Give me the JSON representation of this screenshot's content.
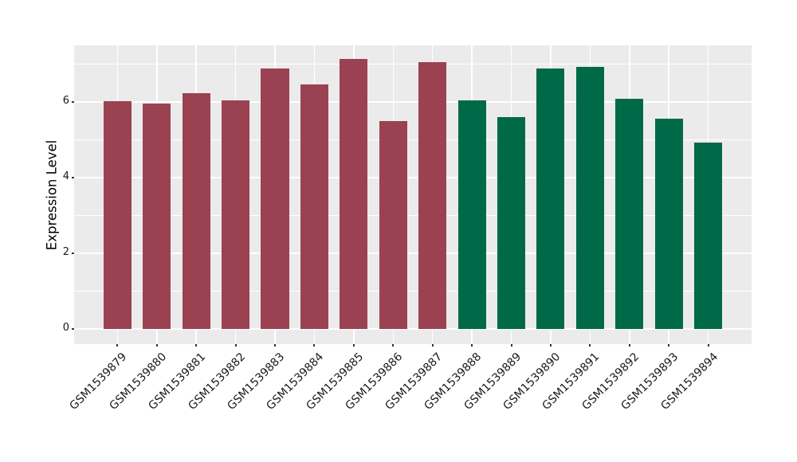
{
  "figure": {
    "background_color": "#FFFFFF"
  },
  "chart_data": {
    "type": "bar",
    "title": "",
    "xlabel": "",
    "ylabel": "Expression Level",
    "categories": [
      "GSM1539879",
      "GSM1539880",
      "GSM1539881",
      "GSM1539882",
      "GSM1539883",
      "GSM1539884",
      "GSM1539885",
      "GSM1539886",
      "GSM1539887",
      "GSM1539888",
      "GSM1539889",
      "GSM1539890",
      "GSM1539891",
      "GSM1539892",
      "GSM1539893",
      "GSM1539894"
    ],
    "values": [
      6.02,
      5.97,
      6.24,
      6.04,
      6.89,
      6.46,
      7.14,
      5.49,
      7.05,
      6.05,
      5.6,
      6.88,
      6.93,
      6.08,
      5.57,
      4.92
    ],
    "bar_colors": [
      "#9B4252",
      "#9B4252",
      "#9B4252",
      "#9B4252",
      "#9B4252",
      "#9B4252",
      "#9B4252",
      "#9B4252",
      "#9B4252",
      "#006A48",
      "#006A48",
      "#006A48",
      "#006A48",
      "#006A48",
      "#006A48",
      "#006A48"
    ],
    "groups": [
      {
        "label": "GSM1539879–GSM1539887",
        "color": "#9B4252",
        "count": 9
      },
      {
        "label": "GSM1539888–GSM1539894",
        "color": "#006A48",
        "count": 7
      }
    ],
    "ylim": [
      -0.4,
      7.5
    ],
    "yticks": [
      0,
      2,
      4,
      6
    ],
    "ytick_labels": [
      "0",
      "2",
      "4",
      "6"
    ],
    "minor_yticks": [
      1,
      3,
      5,
      7
    ],
    "bar_width_ratio": 0.71,
    "grid": {
      "panel_background": "#EBEBEB",
      "major_color": "#FFFFFF",
      "minor_color": "#FFFFFF",
      "tick_color": "#333333",
      "text_color": "#1A1A1A"
    },
    "legend": "none",
    "x_label_rotation_deg": -45
  }
}
